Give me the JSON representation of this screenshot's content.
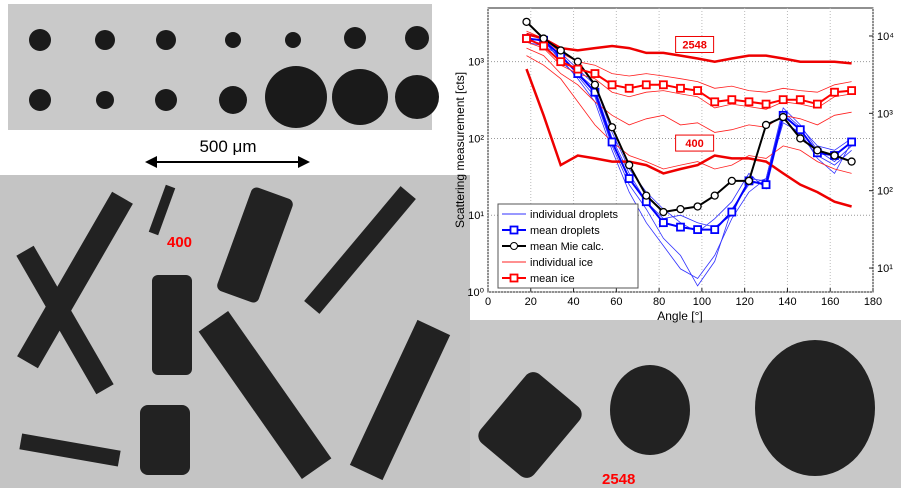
{
  "chart_data": {
    "type": "line",
    "y_scale": "log",
    "grid": true,
    "legend": "lower-left",
    "xlabel": "Angle  [°]",
    "ylabel": "Scattering measurement [cts]",
    "x": [
      18,
      26,
      34,
      42,
      50,
      58,
      66,
      74,
      82,
      90,
      98,
      106,
      114,
      122,
      130,
      138,
      146,
      154,
      162,
      170
    ],
    "xlim": [
      0,
      180
    ],
    "xticks": [
      0,
      20,
      40,
      60,
      80,
      100,
      120,
      140,
      160,
      180
    ],
    "ylim": [
      1,
      5000
    ],
    "yticks": [
      {
        "value": 1,
        "label": "10⁰"
      },
      {
        "value": 10,
        "label": "10¹"
      },
      {
        "value": 100,
        "label": "10²"
      },
      {
        "value": 1000,
        "label": "10³"
      }
    ],
    "y2lim": [
      4.9,
      23000
    ],
    "y2ticks": [
      {
        "value": 10,
        "label": "10¹"
      },
      {
        "value": 100,
        "label": "10²"
      },
      {
        "value": 1000,
        "label": "10³"
      },
      {
        "value": 10000,
        "label": "10⁴"
      }
    ],
    "series": [
      {
        "name": "individual droplets",
        "color": "#3030ff",
        "lines": [
          [
            2100,
            1800,
            1100,
            600,
            300,
            70,
            20,
            8,
            4,
            2,
            1.5,
            3,
            9,
            20,
            30,
            250,
            150,
            70,
            50,
            80
          ],
          [
            1900,
            1700,
            1300,
            800,
            500,
            120,
            40,
            20,
            12,
            8,
            6,
            9,
            15,
            35,
            22,
            180,
            110,
            60,
            45,
            70
          ],
          [
            2200,
            2000,
            1000,
            650,
            350,
            80,
            25,
            12,
            5,
            3,
            1.2,
            2.5,
            12,
            25,
            30,
            220,
            140,
            80,
            70,
            100
          ],
          [
            1800,
            1600,
            1200,
            700,
            450,
            100,
            35,
            15,
            9,
            10,
            8,
            7,
            10,
            30,
            28,
            160,
            120,
            55,
            35,
            90
          ]
        ]
      },
      {
        "name": "mean droplets",
        "color": "#0000ff",
        "marker": "square",
        "values": [
          2000,
          1900,
          1200,
          700,
          400,
          90,
          30,
          15,
          8,
          7,
          6.5,
          6.5,
          11,
          28,
          25,
          200,
          130,
          65,
          60,
          90
        ]
      },
      {
        "name": "mean Mie calc.",
        "color": "#000000",
        "marker": "circle",
        "values": [
          3300,
          2000,
          1400,
          1000,
          500,
          140,
          45,
          18,
          11,
          12,
          13,
          18,
          28,
          28,
          150,
          190,
          100,
          70,
          60,
          50
        ]
      },
      {
        "name": "individual ice",
        "color": "#ff2020",
        "lines": [
          [
            1800,
            1500,
            900,
            700,
            600,
            400,
            350,
            400,
            420,
            380,
            350,
            250,
            280,
            260,
            240,
            300,
            280,
            250,
            350,
            380
          ],
          [
            1500,
            1200,
            700,
            500,
            300,
            200,
            150,
            180,
            200,
            150,
            160,
            120,
            130,
            150,
            140,
            200,
            180,
            150,
            200,
            220
          ],
          [
            2500,
            2000,
            1300,
            1000,
            900,
            700,
            650,
            700,
            650,
            600,
            550,
            450,
            480,
            420,
            400,
            450,
            420,
            400,
            500,
            550
          ],
          [
            1200,
            900,
            600,
            300,
            150,
            90,
            60,
            50,
            40,
            45,
            50,
            40,
            45,
            60,
            55,
            80,
            70,
            50,
            40,
            35
          ]
        ]
      },
      {
        "name": "mean ice",
        "color": "#ff0000",
        "marker": "square",
        "values": [
          2000,
          1600,
          1000,
          800,
          700,
          500,
          450,
          500,
          500,
          450,
          420,
          300,
          320,
          300,
          280,
          320,
          320,
          280,
          400,
          420
        ]
      }
    ],
    "highlighted_ice": [
      {
        "label": "2548",
        "values": [
          2300,
          2000,
          1500,
          1400,
          1500,
          1600,
          1500,
          1300,
          1300,
          1200,
          1100,
          1000,
          1100,
          1200,
          1200,
          1100,
          1000,
          1000,
          1000,
          950
        ]
      },
      {
        "label": "400",
        "values": [
          800,
          200,
          45,
          60,
          55,
          50,
          50,
          45,
          35,
          40,
          45,
          60,
          55,
          55,
          50,
          35,
          25,
          20,
          15,
          13
        ]
      }
    ]
  },
  "photos": {
    "scale_bar": "500 μm",
    "labels": [
      "400",
      "2548"
    ]
  }
}
